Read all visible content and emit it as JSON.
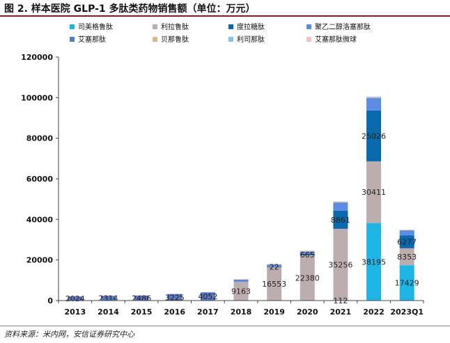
{
  "figure": {
    "title": "图 2. 样本医院 GLP-1 多肽类药物销售额（单位：万元）",
    "source": "资料来源：米内网，安信证券研究中心"
  },
  "chart_data": {
    "type": "bar",
    "stacked": true,
    "categories": [
      "2013",
      "2014",
      "2015",
      "2016",
      "2017",
      "2018",
      "2019",
      "2020",
      "2021",
      "2022",
      "2023Q1"
    ],
    "ylim": [
      0,
      120000
    ],
    "yticks": [
      0,
      20000,
      40000,
      60000,
      80000,
      100000,
      120000
    ],
    "xlabel": "",
    "ylabel": "",
    "legend_position": "top",
    "series": [
      {
        "name": "司美格鲁肽",
        "color": "#1fb4e6",
        "values": [
          0,
          0,
          0,
          0,
          0,
          0,
          0,
          0,
          112,
          38195,
          17429
        ]
      },
      {
        "name": "利拉鲁肽",
        "color": "#bcaeae",
        "values": [
          0,
          0,
          0,
          0,
          0,
          9163,
          16553,
          22380,
          35256,
          30411,
          8353
        ]
      },
      {
        "name": "度拉糖肽",
        "color": "#0a68ad",
        "values": [
          0,
          0,
          0,
          0,
          0,
          0,
          22,
          665,
          8861,
          25026,
          6277
        ]
      },
      {
        "name": "聚乙二醇洛塞那肽",
        "color": "#5b8de6",
        "values": [
          0,
          0,
          0,
          0,
          0,
          500,
          600,
          700,
          3600,
          5800,
          2400
        ]
      },
      {
        "name": "艾塞那肽",
        "color": "#5a79c4",
        "values": [
          2024,
          2314,
          2486,
          3225,
          4052,
          700,
          500,
          400,
          400,
          300,
          200
        ]
      },
      {
        "name": "贝那鲁肽",
        "color": "#d8b98f",
        "values": [
          0,
          0,
          0,
          0,
          0,
          0,
          100,
          150,
          200,
          250,
          80
        ]
      },
      {
        "name": "利司那肽",
        "color": "#7fc4ec",
        "values": [
          0,
          0,
          0,
          0,
          0,
          100,
          150,
          200,
          300,
          400,
          100
        ]
      },
      {
        "name": "艾塞那肽微球",
        "color": "#f2c4bc",
        "values": [
          0,
          0,
          0,
          0,
          0,
          50,
          80,
          100,
          150,
          200,
          50
        ]
      }
    ],
    "data_labels": [
      {
        "category": "2013",
        "series": "艾塞那肽",
        "text": "2024"
      },
      {
        "category": "2014",
        "series": "艾塞那肽",
        "text": "2314"
      },
      {
        "category": "2015",
        "series": "艾塞那肽",
        "text": "2486"
      },
      {
        "category": "2016",
        "series": "艾塞那肽",
        "text": "3225"
      },
      {
        "category": "2017",
        "series": "艾塞那肽",
        "text": "4052"
      },
      {
        "category": "2018",
        "series": "利拉鲁肽",
        "text": "9163"
      },
      {
        "category": "2019",
        "series": "利拉鲁肽",
        "text": "16553"
      },
      {
        "category": "2019",
        "series": "度拉糖肽",
        "text": "22"
      },
      {
        "category": "2020",
        "series": "利拉鲁肽",
        "text": "22380"
      },
      {
        "category": "2020",
        "series": "度拉糖肽",
        "text": "665"
      },
      {
        "category": "2021",
        "series": "司美格鲁肽",
        "text": "112"
      },
      {
        "category": "2021",
        "series": "利拉鲁肽",
        "text": "35256"
      },
      {
        "category": "2021",
        "series": "度拉糖肽",
        "text": "8861"
      },
      {
        "category": "2022",
        "series": "司美格鲁肽",
        "text": "38195"
      },
      {
        "category": "2022",
        "series": "利拉鲁肽",
        "text": "30411"
      },
      {
        "category": "2022",
        "series": "度拉糖肽",
        "text": "25026"
      },
      {
        "category": "2023Q1",
        "series": "司美格鲁肽",
        "text": "17429"
      },
      {
        "category": "2023Q1",
        "series": "利拉鲁肽",
        "text": "8353"
      },
      {
        "category": "2023Q1",
        "series": "度拉糖肽",
        "text": "6277"
      }
    ]
  }
}
